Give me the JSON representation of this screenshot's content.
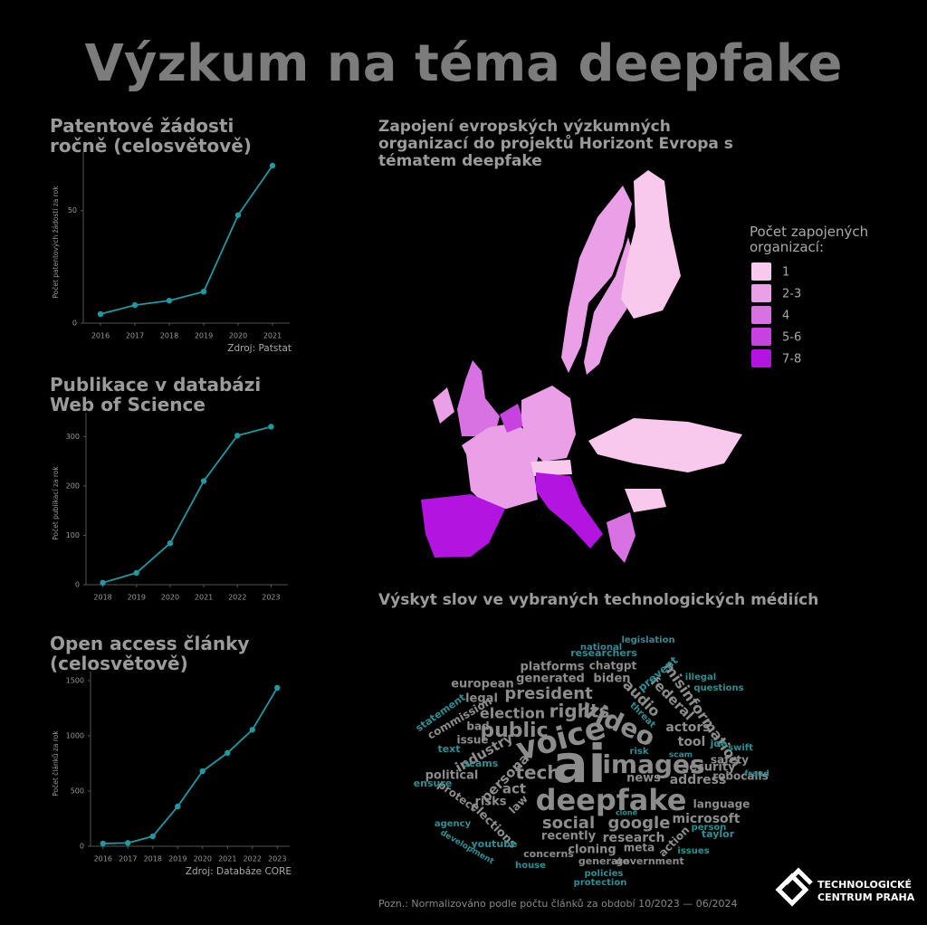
{
  "title": "Výzkum na téma deepfake",
  "chart_data": [
    {
      "type": "line",
      "title": "Patentové žádosti ročně (celosvětově)",
      "y_label": "Počet patentových žádostí za rok",
      "x": [
        2016,
        2017,
        2018,
        2019,
        2020,
        2021
      ],
      "values": [
        4,
        8,
        10,
        14,
        48,
        70
      ],
      "color": "#1f9aa0",
      "xlim": [
        2015.5,
        2021.5
      ],
      "xticks": [
        2016,
        2017,
        2018,
        2019,
        2020,
        2021
      ],
      "ylim": [
        0,
        72
      ],
      "yticks": [
        0,
        50
      ],
      "source": "Zdroj: Patstat"
    },
    {
      "type": "line",
      "title": "Publikace v databázi Web of Science",
      "y_label": "Počet publikací za rok",
      "x": [
        2018,
        2019,
        2020,
        2021,
        2022,
        2023
      ],
      "values": [
        4,
        24,
        84,
        210,
        302,
        320
      ],
      "color": "#1f9aa0",
      "xlim": [
        2017.5,
        2023.5
      ],
      "xticks": [
        2018,
        2019,
        2020,
        2021,
        2022,
        2023
      ],
      "ylim": [
        0,
        330
      ],
      "yticks": [
        0,
        100,
        200,
        300
      ]
    },
    {
      "type": "line",
      "title": "Open access články (celosvětově)",
      "y_label": "Počet článků za rok",
      "x": [
        2016,
        2017,
        2018,
        2019,
        2020,
        2021,
        2022,
        2023
      ],
      "values": [
        25,
        30,
        90,
        360,
        680,
        845,
        1055,
        1435
      ],
      "color": "#1f9aa0",
      "xlim": [
        2015.5,
        2023.5
      ],
      "xticks": [
        2016,
        2017,
        2018,
        2019,
        2020,
        2021,
        2022,
        2023
      ],
      "ylim": [
        0,
        1500
      ],
      "yticks": [
        0,
        500,
        1000,
        1500
      ],
      "source": "Zdroj: Databáze CORE"
    }
  ],
  "map": {
    "title": "Zapojení evropských výzkumných organizací do projektů Horizont Evropa s tématem deepfake",
    "legend_title": "Počet zapojených organizací:",
    "legend": [
      {
        "label": "1",
        "color": "#f8c9ec"
      },
      {
        "label": "2-3",
        "color": "#e9a0e6"
      },
      {
        "label": "4",
        "color": "#d872e2"
      },
      {
        "label": "5-6",
        "color": "#c743e0"
      },
      {
        "label": "7-8",
        "color": "#b414df"
      }
    ]
  },
  "word_cloud": {
    "title": "Výskyt slov ve vybraných technologických médiích",
    "words": [
      "ai",
      "deepfake",
      "voice",
      "images",
      "video",
      "public",
      "rights",
      "president",
      "tech",
      "social",
      "google",
      "election",
      "misinformation",
      "audio",
      "federal",
      "actors",
      "industry",
      "personal",
      "news",
      "research",
      "act",
      "tool",
      "address",
      "robocalls",
      "security",
      "microsoft",
      "language",
      "safety",
      "biden",
      "chatgpt",
      "platforms",
      "generated",
      "european",
      "legal",
      "commission",
      "statement",
      "political",
      "risks",
      "elections",
      "law",
      "protect",
      "issue",
      "bad",
      "recently",
      "cloning",
      "meta",
      "action",
      "generate",
      "government",
      "concerns",
      "house",
      "policies",
      "protection",
      "issues",
      "text",
      "scams",
      "joe",
      "taylor",
      "person",
      "swift",
      "fraud",
      "researchers",
      "national",
      "legislation",
      "illegal",
      "questions",
      "youtube",
      "ensure",
      "agency",
      "development",
      "threat",
      "prevent",
      "scam",
      "clone",
      "risk"
    ],
    "note": "Pozn.: Normalizováno podle počtu článků za období 10/2023 — 06/2024"
  },
  "logo_lines": [
    "TECHNOLOGICKÉ",
    "CENTRUM PRAHA"
  ]
}
